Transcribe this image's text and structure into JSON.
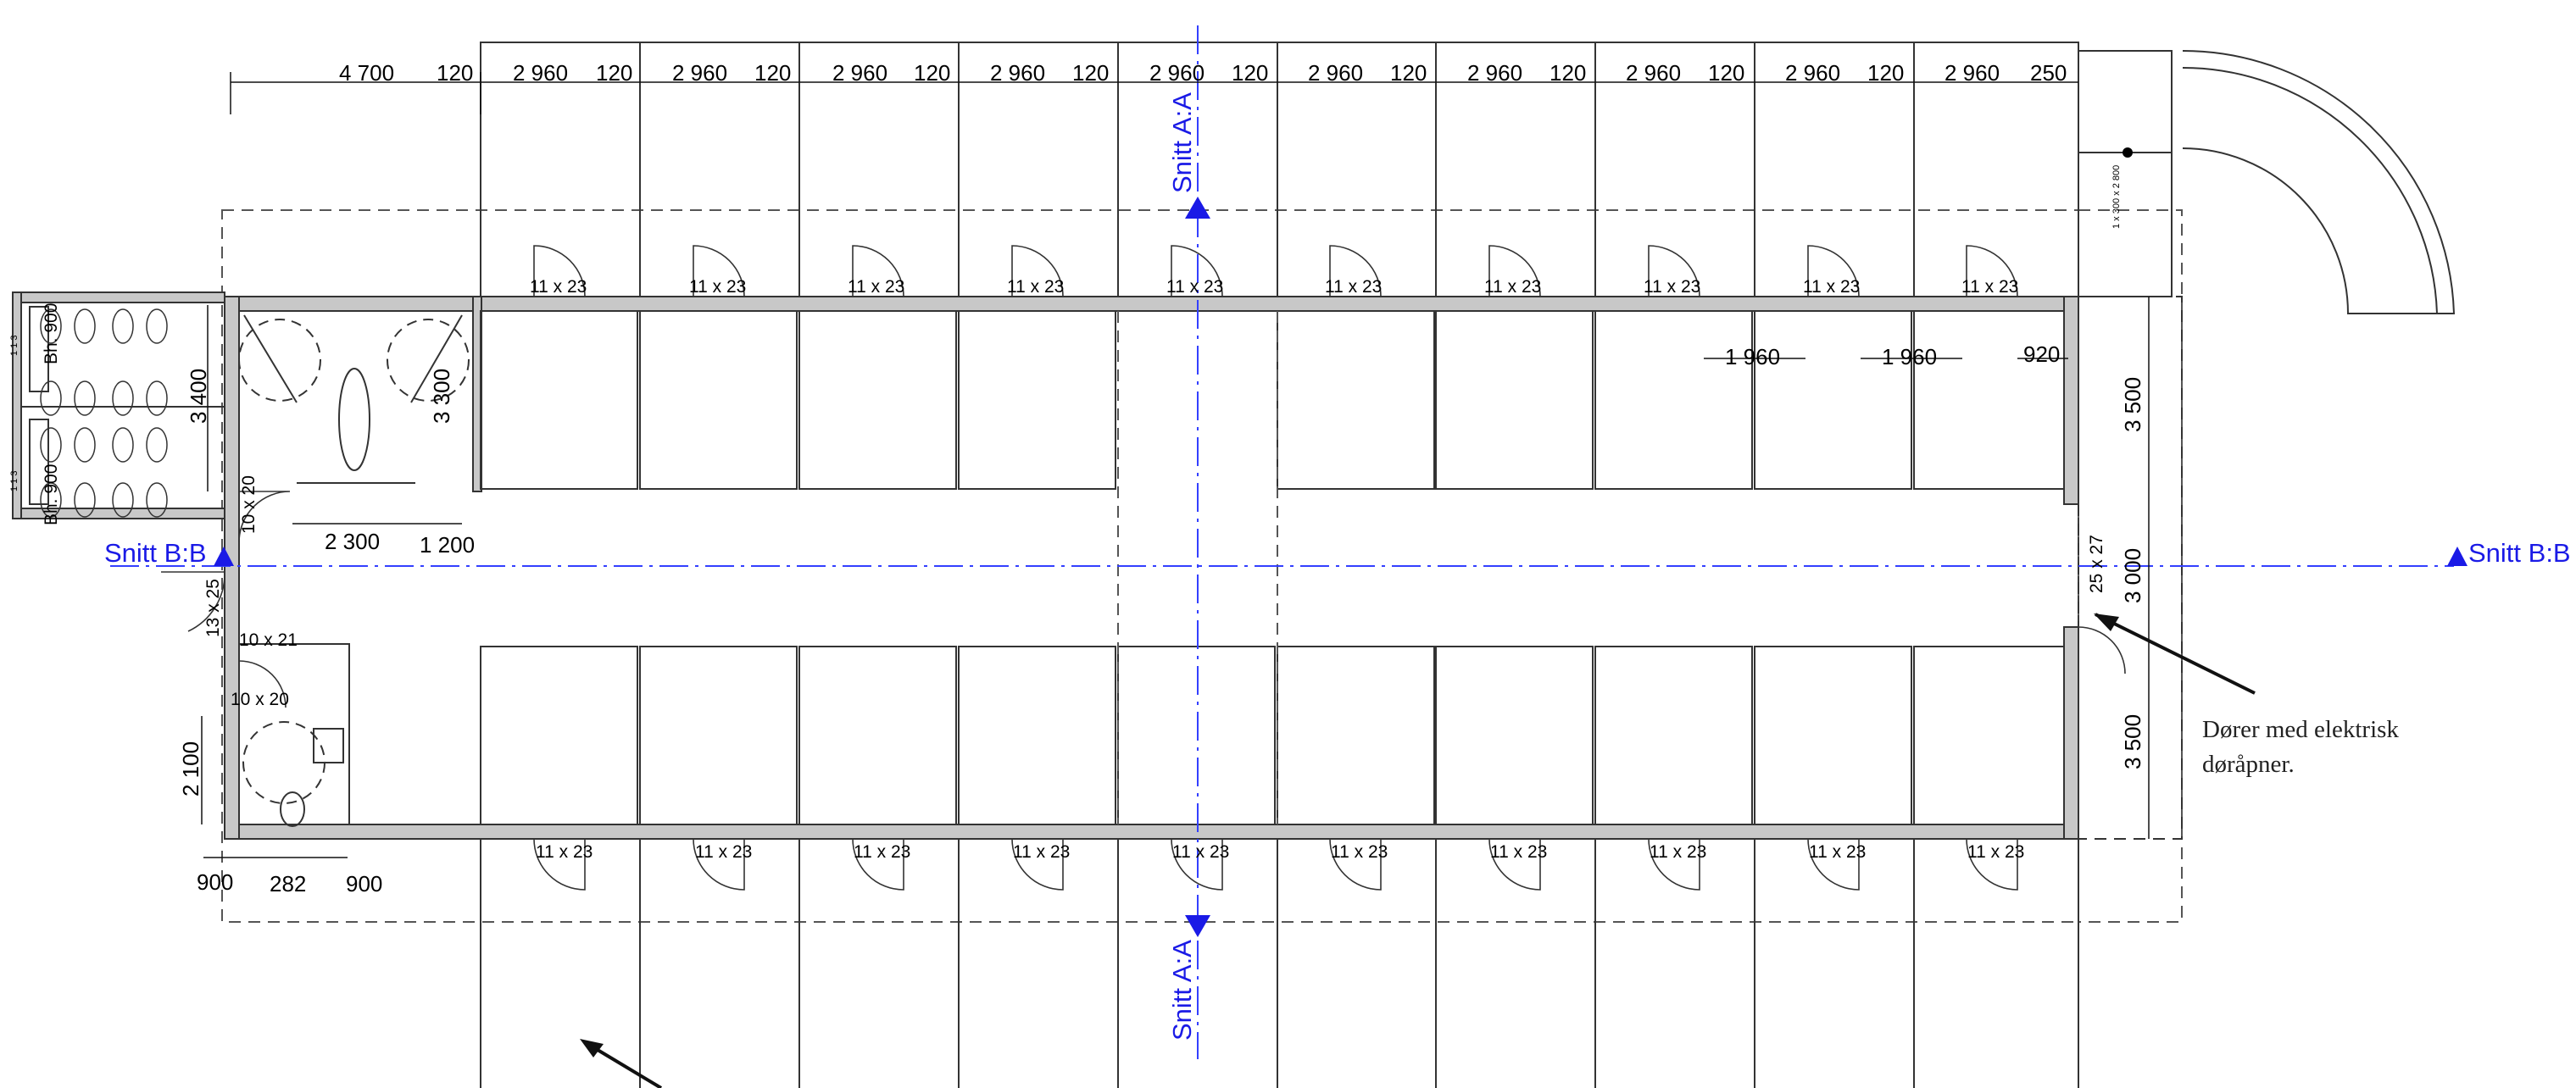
{
  "top_dimensions": [
    "4 700",
    "120",
    "2 960",
    "120",
    "2 960",
    "120",
    "2 960",
    "120",
    "2 960",
    "120",
    "2 960",
    "120",
    "2 960",
    "120",
    "2 960",
    "120",
    "2 960",
    "120",
    "2 960",
    "120",
    "2 960",
    "250"
  ],
  "door_tags_top": [
    "11 x 23",
    "11 x 23",
    "11 x 23",
    "11 x 23",
    "11 x 23",
    "11 x 23",
    "11 x 23",
    "11 x 23",
    "11 x 23",
    "11 x 23"
  ],
  "door_tags_bottom": [
    "11 x 23",
    "11 x 23",
    "11 x 23",
    "11 x 23",
    "11 x 23",
    "11 x 23",
    "11 x 23",
    "11 x 23",
    "11 x 23",
    "11 x 23"
  ],
  "stall_widths": [
    "1 960",
    "1 960",
    "920"
  ],
  "right_dimensions": [
    "3 500",
    "3 000",
    "3 500"
  ],
  "end_door": "25 x 27",
  "left_room": {
    "h1": "3 400",
    "h2": "3 300",
    "w1": "2 300",
    "w2": "1 200",
    "door": "10 x 20",
    "bh_top": "Bh. 900",
    "bh_bottom": "Bh. 900",
    "edge_top": "1 1 3",
    "edge_bottom": "1 1 3"
  },
  "wc": {
    "door_ext": "13 x 25",
    "door_a": "10 x 21",
    "door_b": "10 x 20",
    "height": "2 100",
    "w_left": "900",
    "w_mid": "282",
    "w_right": "900"
  },
  "sections": {
    "aa_top": "Snitt A:A",
    "aa_bottom": "Snitt A:A",
    "bb_left": "Snitt B:B",
    "bb_right": "Snitt B:B"
  },
  "annotation": {
    "line1": "Dører med elektrisk",
    "line2": "døråpner."
  },
  "ramp_label": "1 x 300 x 2 800",
  "colors": {
    "section_marker": "#1a1ae6",
    "wall": "#c8c8c8"
  }
}
